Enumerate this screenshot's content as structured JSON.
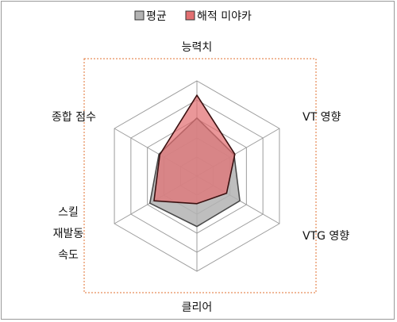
{
  "chart_data": {
    "type": "radar",
    "axes": [
      "능력치",
      "VT 영향",
      "VTG 영향",
      "클리어",
      [
        "스킬",
        "재발동",
        "속도"
      ],
      "종합 점수"
    ],
    "rlim": [
      0,
      5
    ],
    "ring_count": 5,
    "grid": true,
    "legend_position": "top-center",
    "series": [
      {
        "name": "평균",
        "values": [
          3.05,
          2.25,
          2.6,
          2.65,
          2.85,
          2.3
        ],
        "fill": "#b3b3b3",
        "stroke": "#4a4a4a"
      },
      {
        "name": "해적 미야카",
        "values": [
          4.25,
          2.3,
          1.8,
          1.45,
          2.6,
          2.25
        ],
        "fill": "#e26f71",
        "stroke": "#3a1010"
      }
    ]
  },
  "colors": {
    "grid": "#9c9c9c",
    "plot_border": "#e07030"
  }
}
